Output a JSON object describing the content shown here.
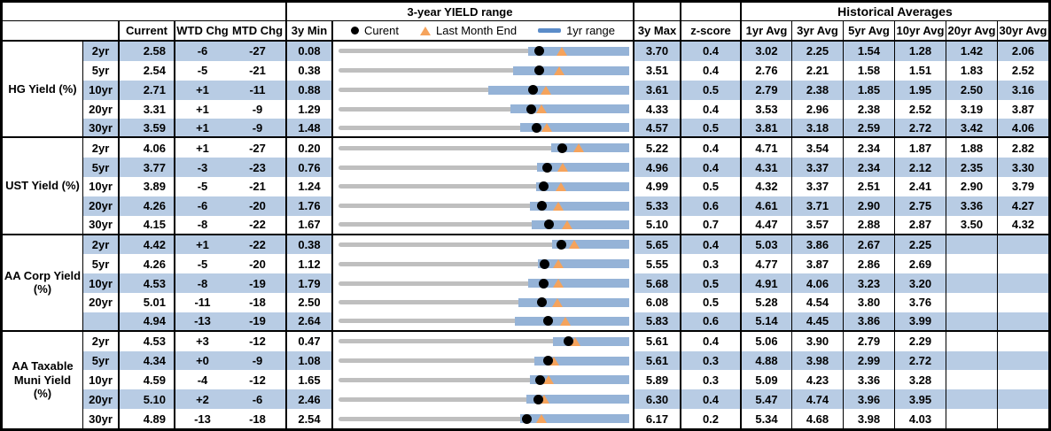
{
  "header": {
    "range_title": "3-year YIELD range",
    "hist_title": "Historical Averages",
    "col_current": "Current",
    "col_wtd": "WTD Chg",
    "col_mtd": "MTD Chg",
    "col_min": "3y Min",
    "col_max": "3y Max",
    "col_z": "z-score",
    "avg_cols": [
      "1yr Avg",
      "3yr Avg",
      "5yr Avg",
      "10yr Avg",
      "20yr Avg",
      "30yr Avg"
    ]
  },
  "legend": {
    "current": "Curent",
    "last_month": "Last Month End",
    "range": "1yr range"
  },
  "colors": {
    "row_shade": "#B8CCE4",
    "bar_1yr_range": "#95B3D7",
    "bar_3yr_range": "#BFBFBF",
    "marker_current": "#000000",
    "marker_last_month_end": "#F5A35C",
    "legend_dash": "#5B8CC9"
  },
  "groups": [
    {
      "label": "HG Yield (%)",
      "rows": [
        {
          "tenor": "2yr",
          "current": "2.58",
          "wtd": "-6",
          "mtd": "-27",
          "min": "0.08",
          "max": "3.70",
          "z": "0.4",
          "avgs": [
            "3.02",
            "2.25",
            "1.54",
            "1.28",
            "1.42",
            "2.06"
          ]
        },
        {
          "tenor": "5yr",
          "current": "2.54",
          "wtd": "-5",
          "mtd": "-21",
          "min": "0.38",
          "max": "3.51",
          "z": "0.4",
          "avgs": [
            "2.76",
            "2.21",
            "1.58",
            "1.51",
            "1.83",
            "2.52"
          ]
        },
        {
          "tenor": "10yr",
          "current": "2.71",
          "wtd": "+1",
          "mtd": "-11",
          "min": "0.88",
          "max": "3.61",
          "z": "0.5",
          "avgs": [
            "2.79",
            "2.38",
            "1.85",
            "1.95",
            "2.50",
            "3.16"
          ]
        },
        {
          "tenor": "20yr",
          "current": "3.31",
          "wtd": "+1",
          "mtd": "-9",
          "min": "1.29",
          "max": "4.33",
          "z": "0.4",
          "avgs": [
            "3.53",
            "2.96",
            "2.38",
            "2.52",
            "3.19",
            "3.87"
          ]
        },
        {
          "tenor": "30yr",
          "current": "3.59",
          "wtd": "+1",
          "mtd": "-9",
          "min": "1.48",
          "max": "4.57",
          "z": "0.5",
          "avgs": [
            "3.81",
            "3.18",
            "2.59",
            "2.72",
            "3.42",
            "4.06"
          ]
        }
      ]
    },
    {
      "label": "UST Yield (%)",
      "rows": [
        {
          "tenor": "2yr",
          "current": "4.06",
          "wtd": "+1",
          "mtd": "-27",
          "min": "0.20",
          "max": "5.22",
          "z": "0.4",
          "avgs": [
            "4.71",
            "3.54",
            "2.34",
            "1.87",
            "1.88",
            "2.82"
          ]
        },
        {
          "tenor": "5yr",
          "current": "3.77",
          "wtd": "-3",
          "mtd": "-23",
          "min": "0.76",
          "max": "4.96",
          "z": "0.4",
          "avgs": [
            "4.31",
            "3.37",
            "2.34",
            "2.12",
            "2.35",
            "3.30"
          ]
        },
        {
          "tenor": "10yr",
          "current": "3.89",
          "wtd": "-5",
          "mtd": "-21",
          "min": "1.24",
          "max": "4.99",
          "z": "0.5",
          "avgs": [
            "4.32",
            "3.37",
            "2.51",
            "2.41",
            "2.90",
            "3.79"
          ]
        },
        {
          "tenor": "20yr",
          "current": "4.26",
          "wtd": "-6",
          "mtd": "-20",
          "min": "1.76",
          "max": "5.33",
          "z": "0.6",
          "avgs": [
            "4.61",
            "3.71",
            "2.90",
            "2.75",
            "3.36",
            "4.27"
          ]
        },
        {
          "tenor": "30yr",
          "current": "4.15",
          "wtd": "-8",
          "mtd": "-22",
          "min": "1.67",
          "max": "5.10",
          "z": "0.7",
          "avgs": [
            "4.47",
            "3.57",
            "2.88",
            "2.87",
            "3.50",
            "4.32"
          ]
        }
      ]
    },
    {
      "label": "AA Corp Yield\n(%)",
      "rows": [
        {
          "tenor": "2yr",
          "current": "4.42",
          "wtd": "+1",
          "mtd": "-22",
          "min": "0.38",
          "max": "5.65",
          "z": "0.4",
          "avgs": [
            "5.03",
            "3.86",
            "2.67",
            "2.25",
            "",
            ""
          ]
        },
        {
          "tenor": "5yr",
          "current": "4.26",
          "wtd": "-5",
          "mtd": "-20",
          "min": "1.12",
          "max": "5.55",
          "z": "0.3",
          "avgs": [
            "4.77",
            "3.87",
            "2.86",
            "2.69",
            "",
            ""
          ]
        },
        {
          "tenor": "10yr",
          "current": "4.53",
          "wtd": "-8",
          "mtd": "-19",
          "min": "1.79",
          "max": "5.68",
          "z": "0.5",
          "avgs": [
            "4.91",
            "4.06",
            "3.23",
            "3.20",
            "",
            ""
          ]
        },
        {
          "tenor": "20yr",
          "current": "5.01",
          "wtd": "-11",
          "mtd": "-18",
          "min": "2.50",
          "max": "6.08",
          "z": "0.5",
          "avgs": [
            "5.28",
            "4.54",
            "3.80",
            "3.76",
            "",
            ""
          ]
        },
        {
          "tenor": "",
          "current": "4.94",
          "wtd": "-13",
          "mtd": "-19",
          "min": "2.64",
          "max": "5.83",
          "z": "0.6",
          "avgs": [
            "5.14",
            "4.45",
            "3.86",
            "3.99",
            "",
            ""
          ]
        }
      ]
    },
    {
      "label": "AA Taxable\nMuni Yield\n(%)",
      "rows": [
        {
          "tenor": "2yr",
          "current": "4.53",
          "wtd": "+3",
          "mtd": "-12",
          "min": "0.47",
          "max": "5.61",
          "z": "0.4",
          "avgs": [
            "5.06",
            "3.90",
            "2.79",
            "2.29",
            "",
            ""
          ]
        },
        {
          "tenor": "5yr",
          "current": "4.34",
          "wtd": "+0",
          "mtd": "-9",
          "min": "1.08",
          "max": "5.61",
          "z": "0.3",
          "avgs": [
            "4.88",
            "3.98",
            "2.99",
            "2.72",
            "",
            ""
          ]
        },
        {
          "tenor": "10yr",
          "current": "4.59",
          "wtd": "-4",
          "mtd": "-12",
          "min": "1.65",
          "max": "5.89",
          "z": "0.3",
          "avgs": [
            "5.09",
            "4.23",
            "3.36",
            "3.28",
            "",
            ""
          ]
        },
        {
          "tenor": "20yr",
          "current": "5.10",
          "wtd": "+2",
          "mtd": "-6",
          "min": "2.46",
          "max": "6.30",
          "z": "0.4",
          "avgs": [
            "5.47",
            "4.74",
            "3.96",
            "3.95",
            "",
            ""
          ]
        },
        {
          "tenor": "30yr",
          "current": "4.89",
          "wtd": "-13",
          "mtd": "-18",
          "min": "2.54",
          "max": "6.17",
          "z": "0.2",
          "avgs": [
            "5.34",
            "4.68",
            "3.98",
            "4.03",
            "",
            ""
          ]
        }
      ]
    }
  ],
  "chart_data": {
    "type": "bullet-range",
    "title": "3-year YIELD range",
    "legend_entries": [
      "Curent",
      "Last Month End",
      "1yr range"
    ],
    "note": "Each row: gray bar spans 3y Min to 3y Max; blue bar is the 1yr range; black dot is Current; orange triangle is Last Month End. last_month_end and range_1yr low values estimated from marker positions.",
    "rows": [
      {
        "series": "HG 2yr",
        "min_3y": 0.08,
        "max_3y": 3.7,
        "current": 2.58,
        "last_month_end": 2.86,
        "range_1yr": [
          2.44,
          3.7
        ]
      },
      {
        "series": "HG 5yr",
        "min_3y": 0.38,
        "max_3y": 3.51,
        "current": 2.54,
        "last_month_end": 2.76,
        "range_1yr": [
          2.26,
          3.51
        ]
      },
      {
        "series": "HG 10yr",
        "min_3y": 0.88,
        "max_3y": 3.61,
        "current": 2.71,
        "last_month_end": 2.83,
        "range_1yr": [
          2.29,
          3.61
        ]
      },
      {
        "series": "HG 20yr",
        "min_3y": 1.29,
        "max_3y": 4.33,
        "current": 3.31,
        "last_month_end": 3.41,
        "range_1yr": [
          3.09,
          4.33
        ]
      },
      {
        "series": "HG 30yr",
        "min_3y": 1.48,
        "max_3y": 4.57,
        "current": 3.59,
        "last_month_end": 3.69,
        "range_1yr": [
          3.41,
          4.57
        ]
      },
      {
        "series": "UST 2yr",
        "min_3y": 0.2,
        "max_3y": 5.22,
        "current": 4.06,
        "last_month_end": 4.34,
        "range_1yr": [
          3.88,
          5.22
        ]
      },
      {
        "series": "UST 5yr",
        "min_3y": 0.76,
        "max_3y": 4.96,
        "current": 3.77,
        "last_month_end": 4.0,
        "range_1yr": [
          3.63,
          4.96
        ]
      },
      {
        "series": "UST 10yr",
        "min_3y": 1.24,
        "max_3y": 4.99,
        "current": 3.89,
        "last_month_end": 4.11,
        "range_1yr": [
          3.79,
          4.99
        ]
      },
      {
        "series": "UST 20yr",
        "min_3y": 1.76,
        "max_3y": 5.33,
        "current": 4.26,
        "last_month_end": 4.46,
        "range_1yr": [
          4.11,
          5.33
        ]
      },
      {
        "series": "UST 30yr",
        "min_3y": 1.67,
        "max_3y": 5.1,
        "current": 4.15,
        "last_month_end": 4.37,
        "range_1yr": [
          3.95,
          5.1
        ]
      },
      {
        "series": "AA Corp 2yr",
        "min_3y": 0.38,
        "max_3y": 5.65,
        "current": 4.42,
        "last_month_end": 4.65,
        "range_1yr": [
          4.25,
          5.65
        ]
      },
      {
        "series": "AA Corp 5yr",
        "min_3y": 1.12,
        "max_3y": 5.55,
        "current": 4.26,
        "last_month_end": 4.47,
        "range_1yr": [
          4.16,
          5.55
        ]
      },
      {
        "series": "AA Corp 10yr",
        "min_3y": 1.79,
        "max_3y": 5.68,
        "current": 4.53,
        "last_month_end": 4.73,
        "range_1yr": [
          4.33,
          5.68
        ]
      },
      {
        "series": "AA Corp 20yr",
        "min_3y": 2.5,
        "max_3y": 6.08,
        "current": 5.01,
        "last_month_end": 5.2,
        "range_1yr": [
          4.72,
          6.08
        ]
      },
      {
        "series": "AA Corp 30yr",
        "min_3y": 2.64,
        "max_3y": 5.83,
        "current": 4.94,
        "last_month_end": 5.13,
        "range_1yr": [
          4.58,
          5.83
        ]
      },
      {
        "series": "AA Taxable Muni 2yr",
        "min_3y": 0.47,
        "max_3y": 5.61,
        "current": 4.53,
        "last_month_end": 4.65,
        "range_1yr": [
          4.26,
          5.61
        ]
      },
      {
        "series": "AA Taxable Muni 5yr",
        "min_3y": 1.08,
        "max_3y": 5.61,
        "current": 4.34,
        "last_month_end": 4.43,
        "range_1yr": [
          4.13,
          5.61
        ]
      },
      {
        "series": "AA Taxable Muni 10yr",
        "min_3y": 1.65,
        "max_3y": 5.89,
        "current": 4.59,
        "last_month_end": 4.72,
        "range_1yr": [
          4.44,
          5.89
        ]
      },
      {
        "series": "AA Taxable Muni 20yr",
        "min_3y": 2.46,
        "max_3y": 6.3,
        "current": 5.1,
        "last_month_end": 5.18,
        "range_1yr": [
          4.94,
          6.3
        ]
      },
      {
        "series": "AA Taxable Muni 30yr",
        "min_3y": 2.54,
        "max_3y": 6.17,
        "current": 4.89,
        "last_month_end": 5.07,
        "range_1yr": [
          4.81,
          6.17
        ]
      }
    ]
  }
}
